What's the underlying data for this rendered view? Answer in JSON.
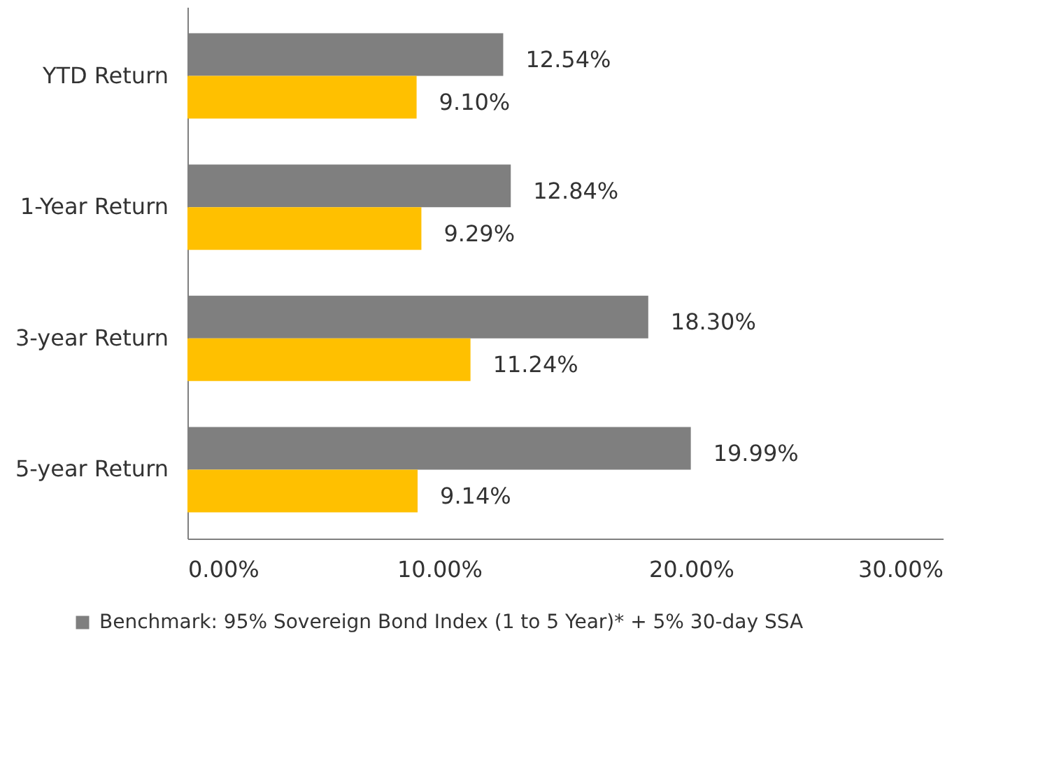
{
  "chart_data": {
    "type": "bar",
    "orientation": "horizontal",
    "categories": [
      "YTD Return",
      "1-Year Return",
      "3-year Return",
      "5-year Return"
    ],
    "series": [
      {
        "name": "Benchmark: 95% Sovereign Bond Index (1 to 5 Year)* + 5% 30-day SSA",
        "color": "#7f7f7f",
        "values": [
          12.54,
          12.84,
          18.3,
          19.99
        ],
        "value_labels": [
          "12.54%",
          "12.84%",
          "18.30%",
          "19.99%"
        ]
      },
      {
        "color": "#ffc000",
        "values": [
          9.1,
          9.29,
          11.24,
          9.14
        ],
        "value_labels": [
          "9.10%",
          "9.29%",
          "11.24%",
          "9.14%"
        ]
      }
    ],
    "xlim": [
      0,
      30
    ],
    "xticks": [
      {
        "value": 0,
        "label": "0.00%"
      },
      {
        "value": 10,
        "label": "10.00%"
      },
      {
        "value": 20,
        "label": "20.00%"
      },
      {
        "value": 30,
        "label": "30.00%"
      }
    ],
    "grid": false,
    "legend": "bottom"
  }
}
